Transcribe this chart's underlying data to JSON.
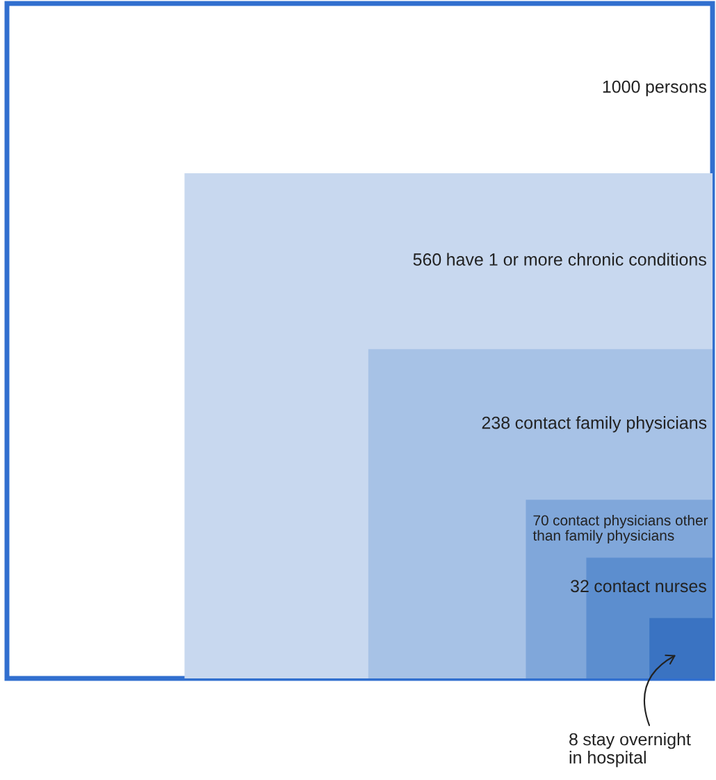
{
  "chart_data": {
    "type": "other",
    "categories": [
      "persons",
      "have 1 or more chronic conditions",
      "contact family physicians",
      "contact physicians other\nthan family physicians",
      "contact nurses",
      "stay overnight\nin hospital"
    ],
    "values": [
      1000,
      560,
      238,
      70,
      32,
      8
    ],
    "colors": [
      "#ffffff",
      "#c8d8ef",
      "#a7c2e6",
      "#80a7da",
      "#5c8ecf",
      "#3a73c2"
    ],
    "color": "#316fcf",
    "data_labels": true
  }
}
